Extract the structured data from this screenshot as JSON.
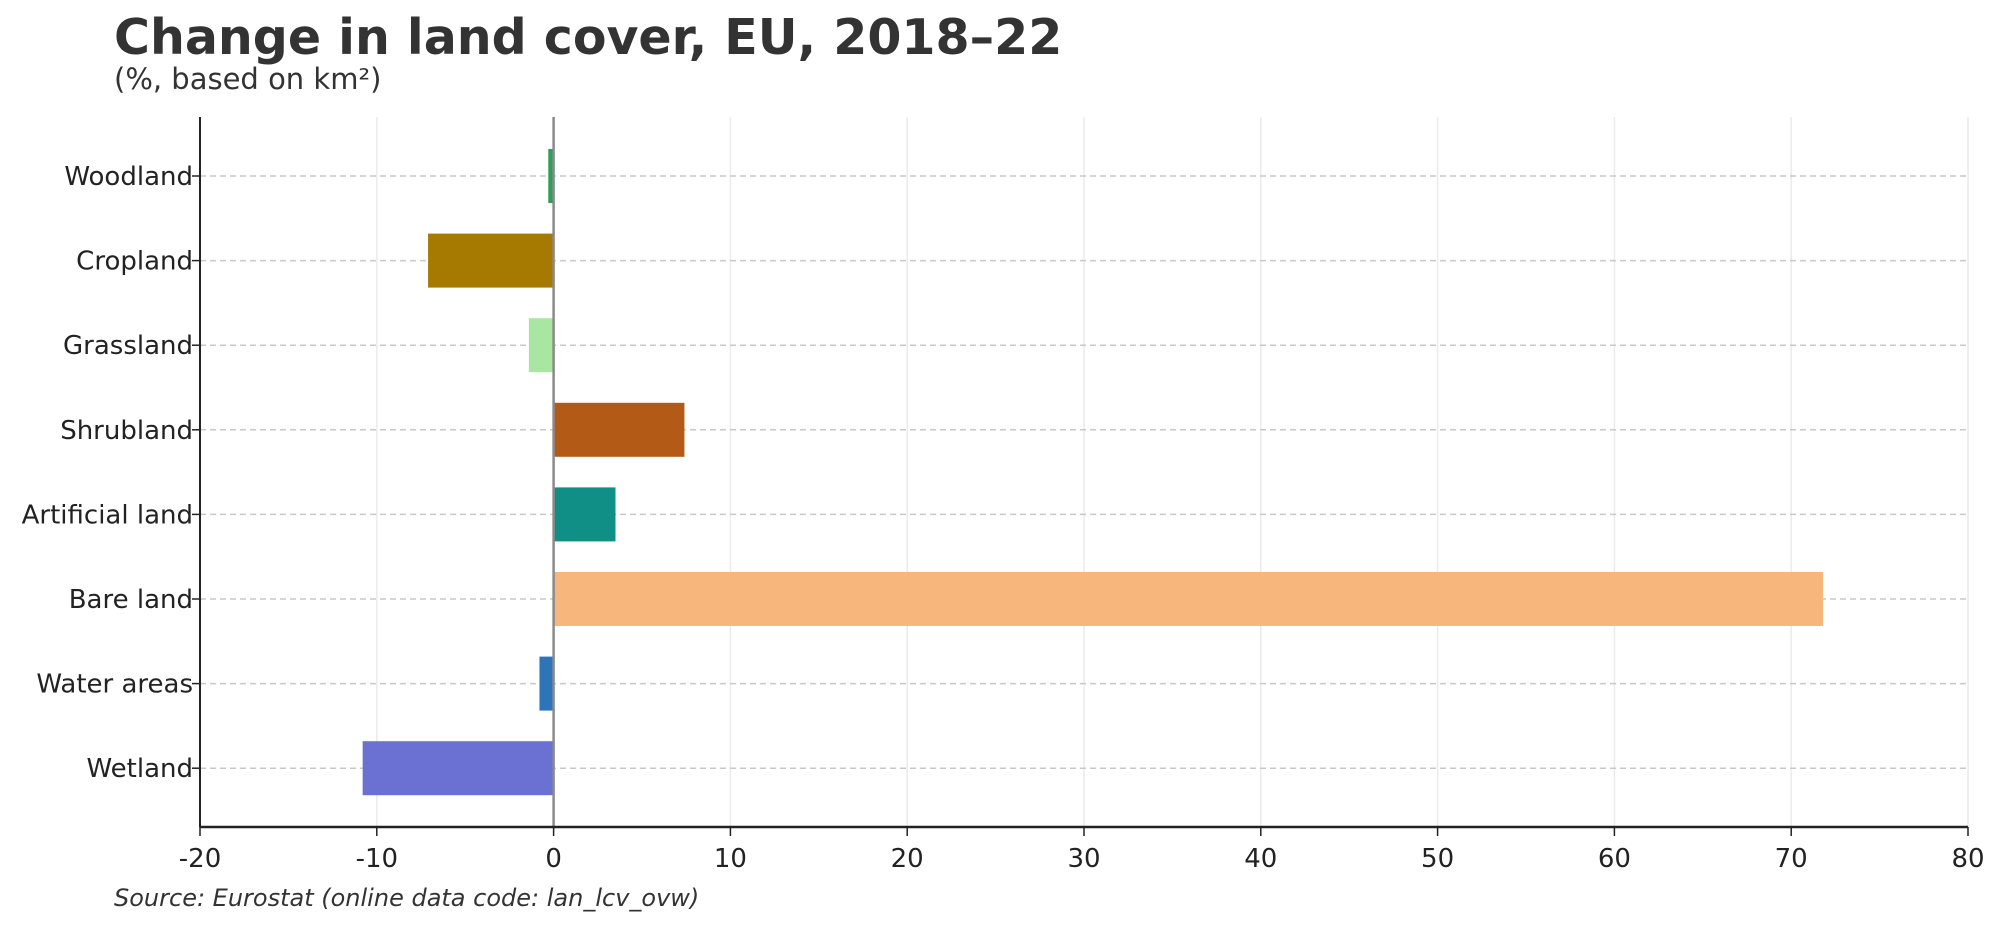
{
  "chart_data": {
    "type": "bar",
    "orientation": "horizontal",
    "title": "Change in land cover, EU, 2018–22",
    "subtitle": "(%, based on km²)",
    "source": "Source: Eurostat (online data code: lan_lcv_ovw)",
    "categories": [
      "Woodland",
      "Cropland",
      "Grassland",
      "Shrubland",
      "Artificial land",
      "Bare land",
      "Water areas",
      "Wetland"
    ],
    "values": [
      -0.3,
      -7.1,
      -1.4,
      7.4,
      3.5,
      71.8,
      -0.8,
      -10.8
    ],
    "colors": [
      "#2e9e5b",
      "#a67a00",
      "#a8e6a1",
      "#b35a17",
      "#0f8f86",
      "#f7b67b",
      "#2e74b8",
      "#6b70d3"
    ],
    "xlim": [
      -20,
      80
    ],
    "xticks": [
      "-20",
      "-10",
      "0",
      "10",
      "20",
      "30",
      "40",
      "50",
      "60",
      "70",
      "80"
    ],
    "xlabel": "",
    "ylabel": "",
    "grid": true
  }
}
